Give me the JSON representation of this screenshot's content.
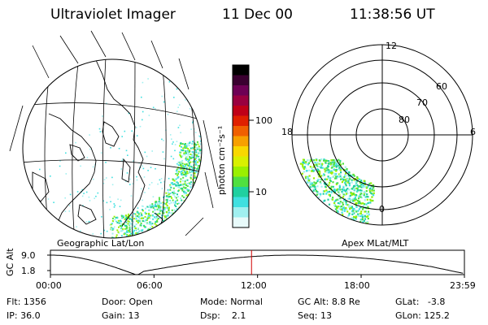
{
  "header": {
    "title": "Ultraviolet Imager",
    "date": "11 Dec 00",
    "time": "11:38:56 UT"
  },
  "left_panel": {
    "label": "Geographic Lat/Lon"
  },
  "right_panel": {
    "label": "Apex MLat/MLT",
    "mlt_labels": [
      "12",
      "18",
      "6",
      "0"
    ],
    "lat_labels": [
      "60",
      "70",
      "80"
    ]
  },
  "colorbar": {
    "unit_label": "photon cm⁻²s⁻¹",
    "tick_labels": [
      "100",
      "10"
    ],
    "colors": [
      "#000000",
      "#3a0030",
      "#6e0055",
      "#9a0040",
      "#c00018",
      "#e02000",
      "#f06000",
      "#f7a000",
      "#f8d800",
      "#d8f000",
      "#9af000",
      "#50e040",
      "#20d0a0",
      "#40e0e0",
      "#a0f0f0",
      "#e8fafa"
    ]
  },
  "timeline": {
    "axis_label": "GC Alt",
    "y_labels": [
      "9.0",
      "1.8"
    ],
    "x_labels": [
      "00:00",
      "06:00",
      "12:00",
      "18:00",
      "23:59"
    ],
    "marker_hour": 11.65
  },
  "info": {
    "row1": [
      {
        "key": "Flt:",
        "val": "1356"
      },
      {
        "key": "Door:",
        "val": "Open"
      },
      {
        "key": "Mode:",
        "val": "Normal"
      },
      {
        "key": "GC Alt:",
        "val": "8.8 Re"
      },
      {
        "key": "GLat:",
        "val": "-3.8"
      }
    ],
    "row2": [
      {
        "key": "IP:",
        "val": "36.0"
      },
      {
        "key": "Gain:",
        "val": "13"
      },
      {
        "key": "Dsp:",
        "val": "2.1"
      },
      {
        "key": "Seq:",
        "val": "13"
      },
      {
        "key": "GLon:",
        "val": "125.2"
      }
    ]
  }
}
